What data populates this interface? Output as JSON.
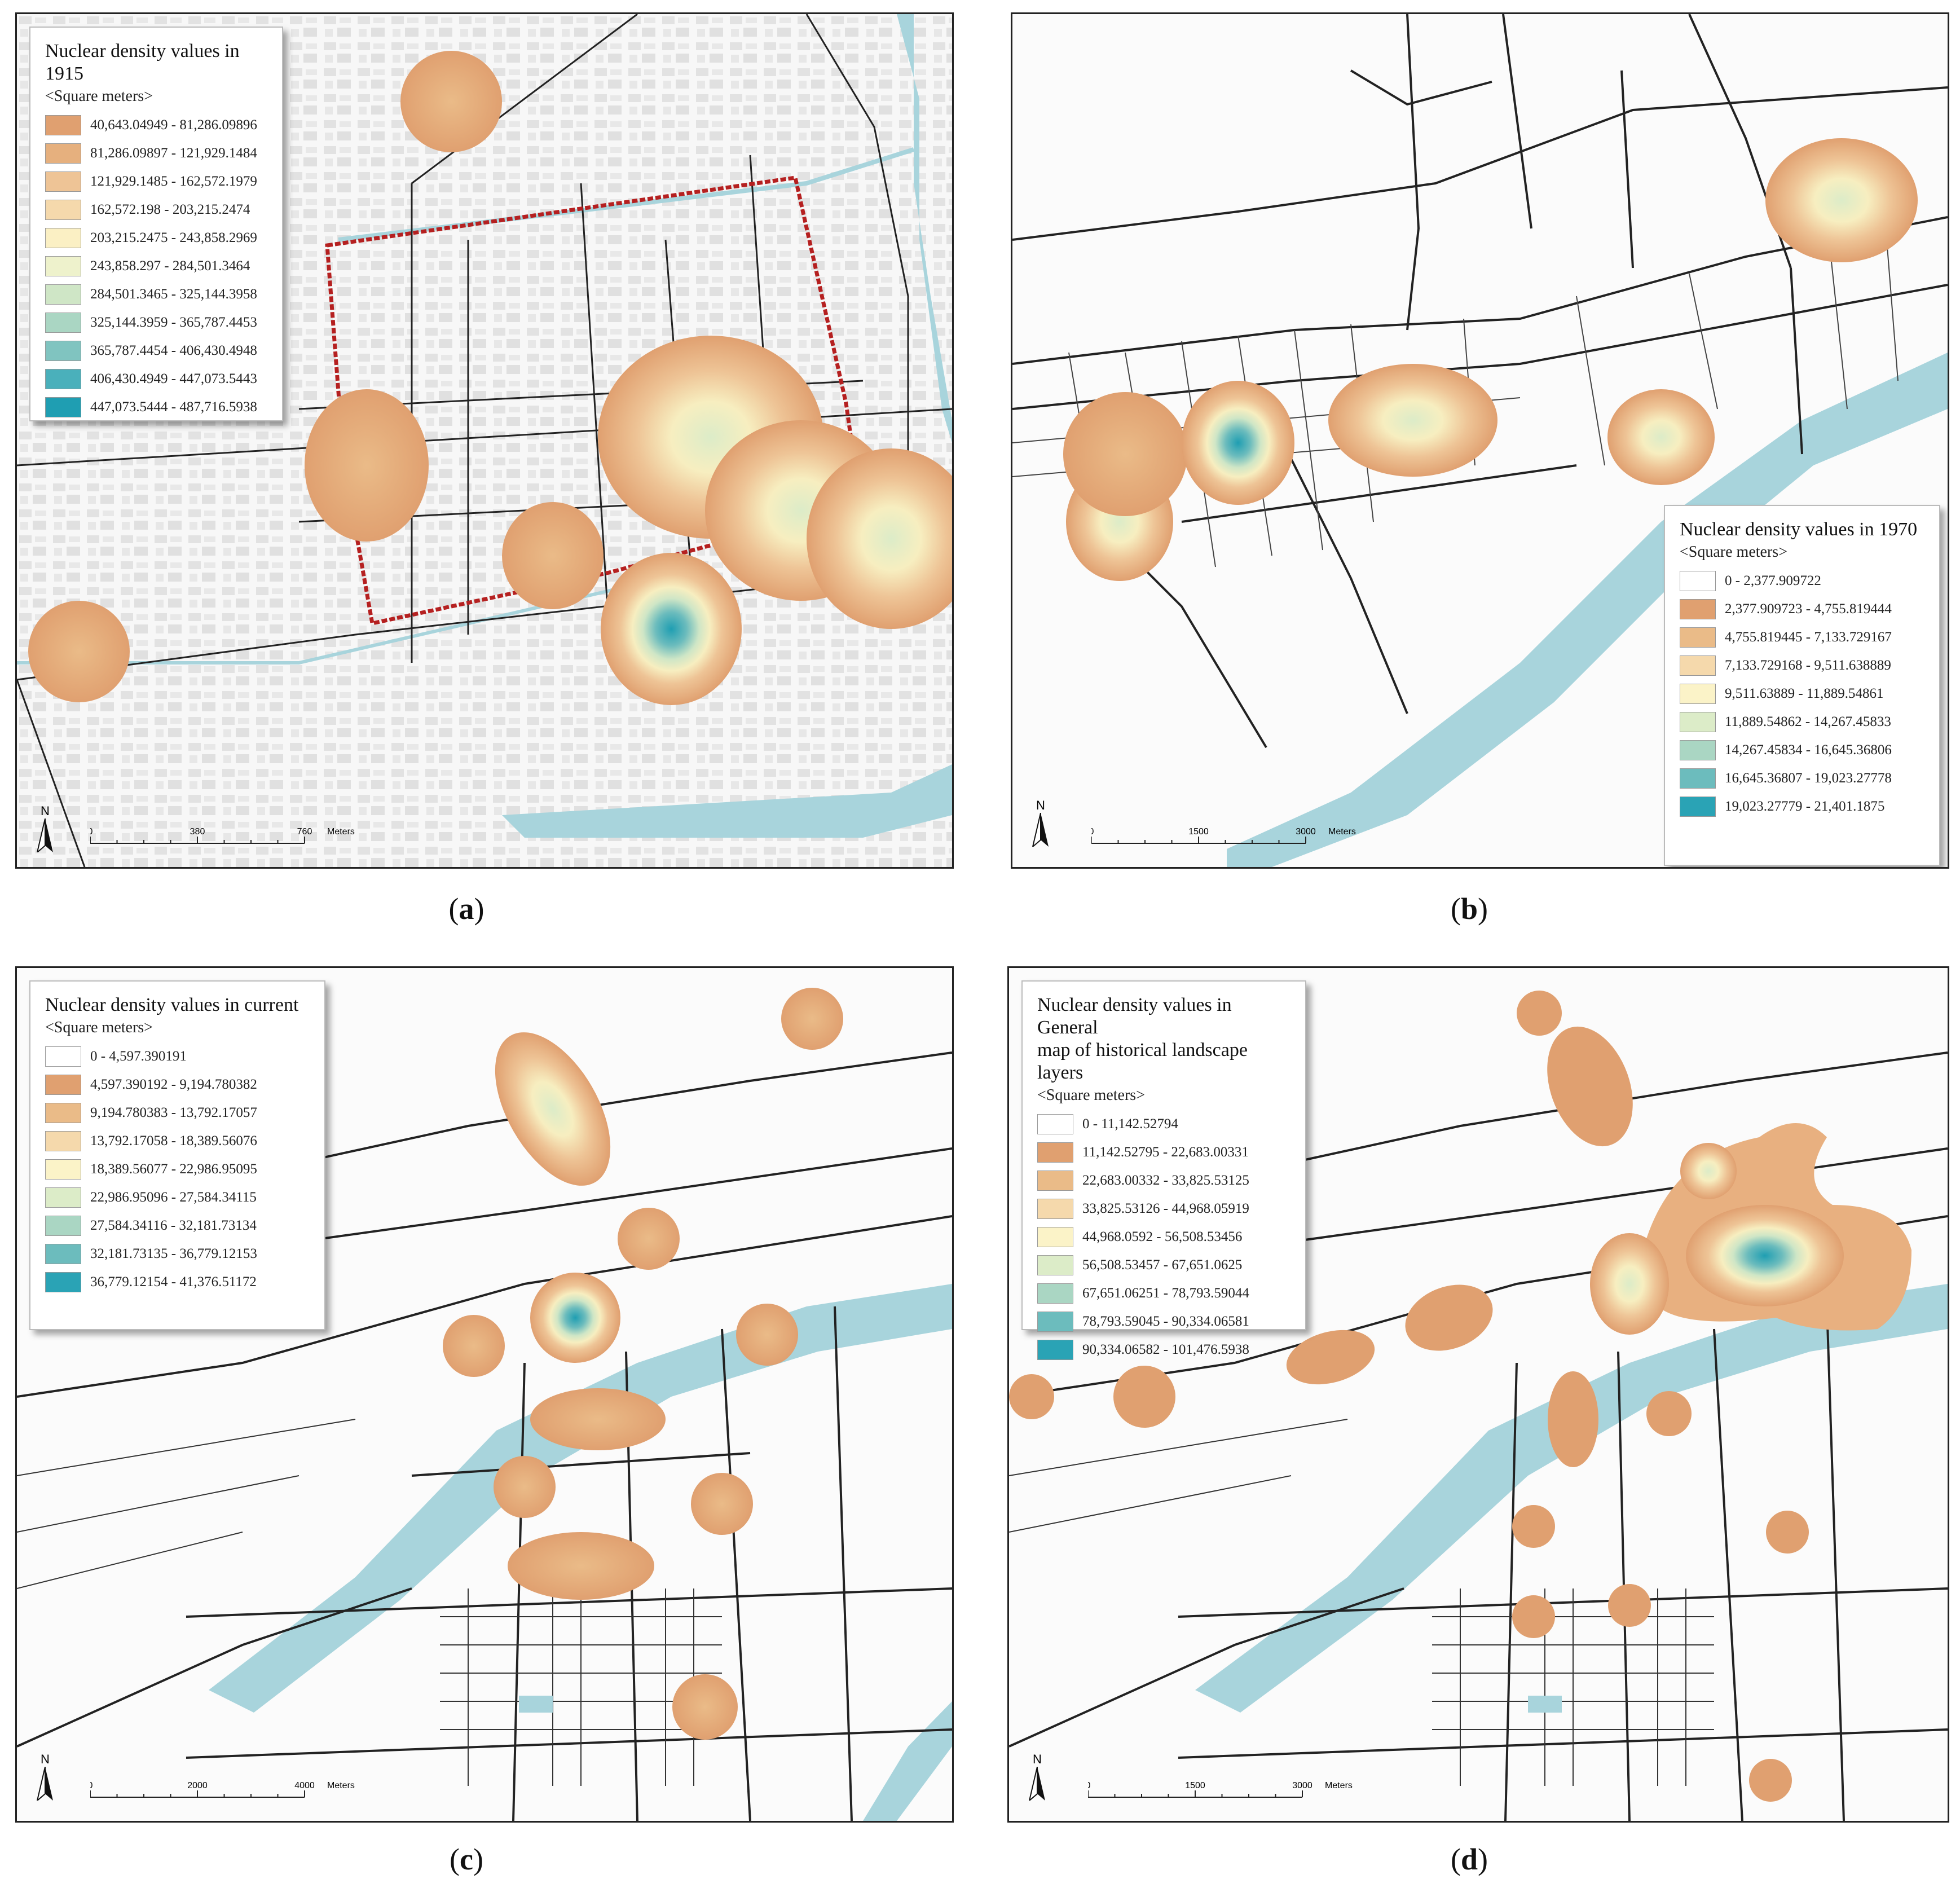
{
  "panels": {
    "a": {
      "caption": "a",
      "legend_title": "Nuclear density values in 1915",
      "legend_unit": "<Square meters>",
      "classes": [
        {
          "label": "40,643.04949 - 81,286.09896",
          "color": "#e0a070"
        },
        {
          "label": "81,286.09897 - 121,929.1484",
          "color": "#e6b07e"
        },
        {
          "label": "121,929.1485 - 162,572.1979",
          "color": "#eec496"
        },
        {
          "label": "162,572.198 - 203,215.2474",
          "color": "#f5d9ac"
        },
        {
          "label": "203,215.2475 - 243,858.2969",
          "color": "#fbf0c4"
        },
        {
          "label": "243,858.297 - 284,501.3464",
          "color": "#eef2cc"
        },
        {
          "label": "284,501.3465 - 325,144.3958",
          "color": "#cfe6c6"
        },
        {
          "label": "325,144.3959 - 365,787.4453",
          "color": "#aad6c3"
        },
        {
          "label": "365,787.4454 - 406,430.4948",
          "color": "#80c4c0"
        },
        {
          "label": "406,430.4949 - 447,073.5443",
          "color": "#4ab0bb"
        },
        {
          "label": "447,073.5444 - 487,716.5938",
          "color": "#1f9eb2"
        }
      ],
      "scale": {
        "ticks": [
          "0",
          "380",
          "760"
        ],
        "unit": "Meters"
      },
      "north": "N"
    },
    "b": {
      "caption": "b",
      "legend_title": "Nuclear density values in 1970",
      "legend_unit": "<Square meters>",
      "classes": [
        {
          "label": "0 - 2,377.909722",
          "color": "#ffffff"
        },
        {
          "label": "2,377.909723 - 4,755.819444",
          "color": "#e0a070"
        },
        {
          "label": "4,755.819445 - 7,133.729167",
          "color": "#eabb88"
        },
        {
          "label": "7,133.729168 - 9,511.638889",
          "color": "#f5d9ac"
        },
        {
          "label": "9,511.63889 - 11,889.54861",
          "color": "#fbf3c8"
        },
        {
          "label": "11,889.54862 - 14,267.45833",
          "color": "#dcecc8"
        },
        {
          "label": "14,267.45834 - 16,645.36806",
          "color": "#aad6c3"
        },
        {
          "label": "16,645.36807 - 19,023.27778",
          "color": "#6cbcbd"
        },
        {
          "label": "19,023.27779 - 21,401.1875",
          "color": "#2aa3b5"
        }
      ],
      "scale": {
        "ticks": [
          "0",
          "1500",
          "3000"
        ],
        "unit": "Meters"
      },
      "north": "N"
    },
    "c": {
      "caption": "c",
      "legend_title": "Nuclear density values in current",
      "legend_unit": "<Square meters>",
      "classes": [
        {
          "label": "0 - 4,597.390191",
          "color": "#ffffff"
        },
        {
          "label": "4,597.390192 - 9,194.780382",
          "color": "#e0a070"
        },
        {
          "label": "9,194.780383 - 13,792.17057",
          "color": "#eabb88"
        },
        {
          "label": "13,792.17058 - 18,389.56076",
          "color": "#f5d9ac"
        },
        {
          "label": "18,389.56077 - 22,986.95095",
          "color": "#fbf3c8"
        },
        {
          "label": "22,986.95096 - 27,584.34115",
          "color": "#dcecc8"
        },
        {
          "label": "27,584.34116 - 32,181.73134",
          "color": "#aad6c3"
        },
        {
          "label": "32,181.73135 - 36,779.12153",
          "color": "#6cbcbd"
        },
        {
          "label": "36,779.12154 - 41,376.51172",
          "color": "#2aa3b5"
        }
      ],
      "scale": {
        "ticks": [
          "0",
          "2000",
          "4000"
        ],
        "unit": "Meters"
      },
      "north": "N"
    },
    "d": {
      "caption": "d",
      "legend_title": "Nuclear density values in General\nmap of historical landscape layers",
      "legend_unit": "<Square meters>",
      "classes": [
        {
          "label": "0 - 11,142.52794",
          "color": "#ffffff"
        },
        {
          "label": "11,142.52795 - 22,683.00331",
          "color": "#e0a070"
        },
        {
          "label": "22,683.00332 - 33,825.53125",
          "color": "#eabb88"
        },
        {
          "label": "33,825.53126 - 44,968.05919",
          "color": "#f5d9ac"
        },
        {
          "label": "44,968.0592 - 56,508.53456",
          "color": "#fbf3c8"
        },
        {
          "label": "56,508.53457 - 67,651.0625",
          "color": "#dcecc8"
        },
        {
          "label": "67,651.06251 - 78,793.59044",
          "color": "#aad6c3"
        },
        {
          "label": "78,793.59045 - 90,334.06581",
          "color": "#6cbcbd"
        },
        {
          "label": "90,334.06582 - 101,476.5938",
          "color": "#2aa3b5"
        }
      ],
      "scale": {
        "ticks": [
          "0",
          "1500",
          "3000"
        ],
        "unit": "Meters"
      },
      "north": "N"
    }
  },
  "colors": {
    "river": "#a8d4dc",
    "road": "#222222",
    "block": "#dcdcdc",
    "wall": "#b52020",
    "low": "#e0a070",
    "mid": "#f7e7b5",
    "high": "#1f9eb2"
  }
}
